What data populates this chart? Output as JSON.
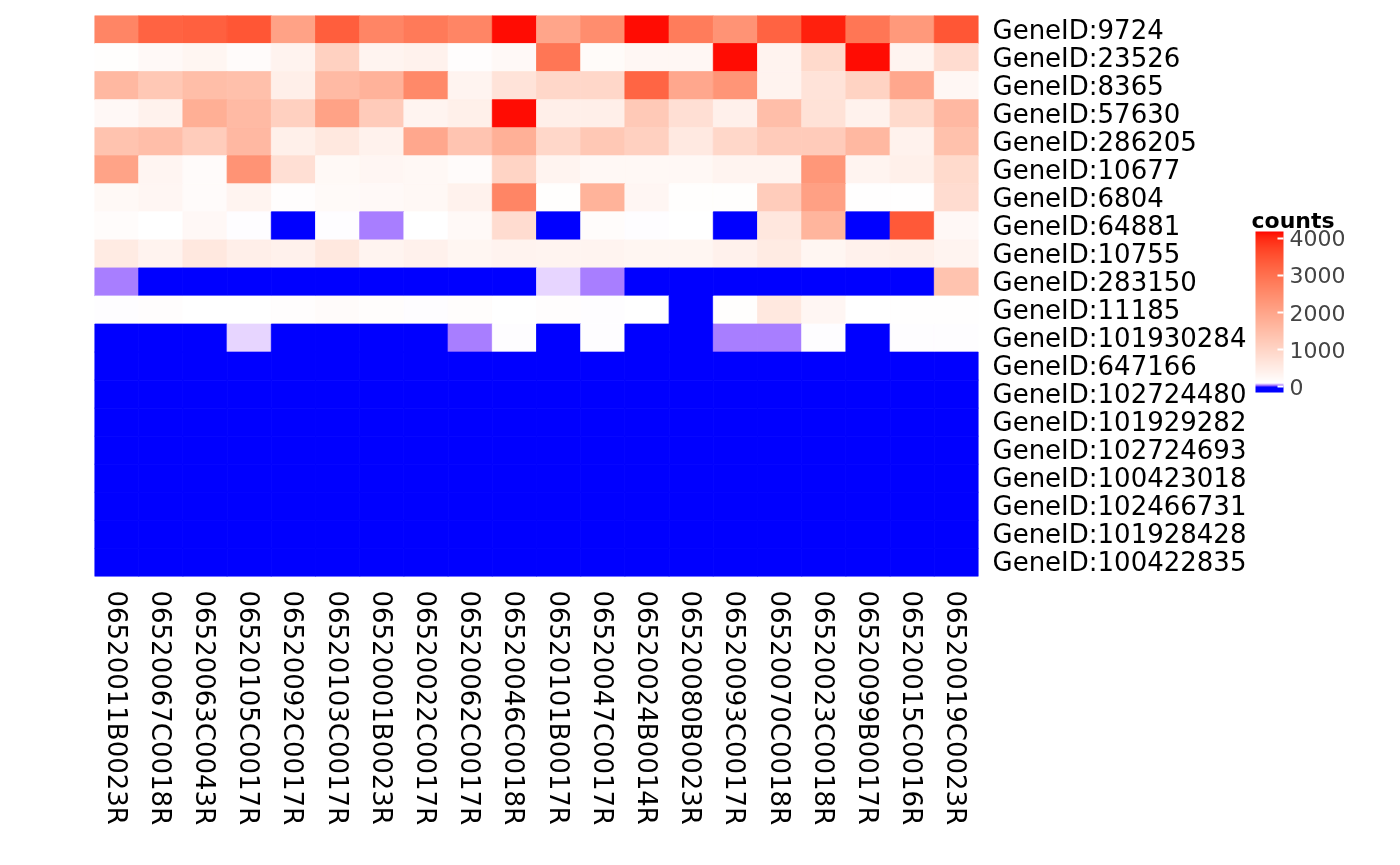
{
  "chart_data": {
    "type": "heatmap",
    "clabel": "counts",
    "categories": [
      "06520011B0023R",
      "06520067C0018R",
      "06520063C0043R",
      "06520105C0017R",
      "06520092C0017R",
      "06520103C0017R",
      "06520001B0023R",
      "06520022C0017R",
      "06520062C0017R",
      "06520046C0018R",
      "06520101B0017R",
      "06520047C0017R",
      "06520024B0014R",
      "06520080B0023R",
      "06520093C0017R",
      "06520070C0018R",
      "06520023C0018R",
      "06520099B0017R",
      "06520015C0016R",
      "06520019C0023R"
    ],
    "y_categories": [
      "GeneID:9724",
      "GeneID:23526",
      "GeneID:8365",
      "GeneID:57630",
      "GeneID:286205",
      "GeneID:10677",
      "GeneID:6804",
      "GeneID:64881",
      "GeneID:10755",
      "GeneID:283150",
      "GeneID:11185",
      "GeneID:101930284",
      "GeneID:647166",
      "GeneID:102724480",
      "GeneID:101929282",
      "GeneID:102724693",
      "GeneID:100423018",
      "GeneID:102466731",
      "GeneID:101928428",
      "GeneID:100422835"
    ],
    "cells": [
      [
        2630,
        3240,
        3280,
        3450,
        2060,
        3320,
        2630,
        2830,
        2630,
        4150,
        2000,
        2470,
        4150,
        2800,
        2350,
        3240,
        4050,
        2900,
        2250,
        3450
      ],
      [
        130,
        230,
        300,
        180,
        350,
        1080,
        330,
        380,
        140,
        230,
        2900,
        200,
        280,
        280,
        4150,
        350,
        900,
        4150,
        330,
        850
      ],
      [
        1610,
        1280,
        1490,
        1450,
        450,
        1560,
        1730,
        2550,
        330,
        700,
        950,
        950,
        3200,
        1950,
        2320,
        350,
        700,
        1050,
        1950,
        280
      ],
      [
        250,
        380,
        1800,
        1560,
        1100,
        2060,
        1200,
        330,
        430,
        4150,
        450,
        450,
        1250,
        780,
        420,
        1480,
        730,
        380,
        900,
        1600
      ],
      [
        1370,
        1480,
        1180,
        1600,
        430,
        600,
        380,
        1950,
        1350,
        1780,
        950,
        1280,
        1100,
        580,
        950,
        1200,
        1200,
        1610,
        380,
        1420
      ],
      [
        2040,
        310,
        180,
        2350,
        780,
        240,
        290,
        260,
        180,
        1020,
        330,
        260,
        260,
        260,
        330,
        330,
        2280,
        330,
        430,
        900
      ],
      [
        240,
        290,
        180,
        340,
        140,
        210,
        230,
        260,
        380,
        2630,
        130,
        1720,
        290,
        130,
        130,
        1180,
        2100,
        120,
        120,
        850
      ],
      [
        170,
        110,
        250,
        100,
        0,
        100,
        45,
        105,
        230,
        850,
        0,
        170,
        100,
        105,
        0,
        620,
        1680,
        0,
        3400,
        250
      ],
      [
        540,
        350,
        600,
        450,
        400,
        600,
        330,
        400,
        300,
        350,
        330,
        330,
        300,
        300,
        400,
        540,
        300,
        400,
        430,
        330
      ],
      [
        45,
        0,
        0,
        0,
        0,
        0,
        0,
        0,
        0,
        0,
        85,
        45,
        0,
        0,
        0,
        0,
        0,
        0,
        0,
        1370
      ],
      [
        100,
        140,
        110,
        110,
        140,
        180,
        150,
        100,
        150,
        110,
        140,
        100,
        105,
        0,
        130,
        600,
        290,
        110,
        120,
        115
      ],
      [
        0,
        0,
        0,
        85,
        0,
        0,
        0,
        0,
        45,
        100,
        0,
        100,
        0,
        0,
        45,
        45,
        100,
        0,
        100,
        100
      ],
      [
        0,
        0,
        0,
        0,
        0,
        0,
        0,
        0,
        0,
        0,
        0,
        0,
        0,
        0,
        0,
        0,
        0,
        0,
        0,
        0
      ],
      [
        0,
        0,
        0,
        0,
        0,
        0,
        0,
        0,
        0,
        0,
        0,
        0,
        0,
        0,
        0,
        0,
        0,
        0,
        0,
        0
      ],
      [
        0,
        0,
        0,
        0,
        0,
        0,
        0,
        0,
        0,
        0,
        0,
        0,
        0,
        0,
        0,
        0,
        0,
        0,
        0,
        0
      ],
      [
        0,
        0,
        0,
        0,
        0,
        0,
        0,
        0,
        0,
        0,
        0,
        0,
        0,
        0,
        0,
        0,
        0,
        0,
        0,
        0
      ],
      [
        0,
        0,
        0,
        0,
        0,
        0,
        0,
        0,
        0,
        0,
        0,
        0,
        0,
        0,
        0,
        0,
        0,
        0,
        0,
        0
      ],
      [
        0,
        0,
        0,
        0,
        0,
        0,
        0,
        0,
        0,
        0,
        0,
        0,
        0,
        0,
        0,
        0,
        0,
        0,
        0,
        0
      ],
      [
        0,
        0,
        0,
        0,
        0,
        0,
        0,
        0,
        0,
        0,
        0,
        0,
        0,
        0,
        0,
        0,
        0,
        0,
        0,
        0
      ],
      [
        0,
        0,
        0,
        0,
        0,
        0,
        0,
        0,
        0,
        0,
        0,
        0,
        0,
        0,
        0,
        0,
        0,
        0,
        0,
        0
      ]
    ],
    "colors": [
      "#0000ff",
      "#ffffff",
      "#ff0000"
    ],
    "clim": [
      -150,
      4180
    ],
    "cticks": [
      0,
      1000,
      2000,
      3000,
      4000
    ]
  }
}
